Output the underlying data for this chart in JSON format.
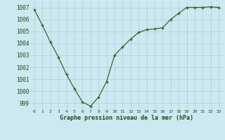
{
  "x": [
    0,
    1,
    2,
    3,
    4,
    5,
    6,
    7,
    8,
    9,
    10,
    11,
    12,
    13,
    14,
    15,
    16,
    17,
    18,
    19,
    20,
    21,
    22,
    23
  ],
  "y": [
    1006.8,
    1005.5,
    1004.1,
    1002.85,
    1001.4,
    1000.2,
    999.1,
    998.75,
    999.5,
    1000.8,
    1003.0,
    1003.7,
    1004.35,
    1004.9,
    1005.15,
    1005.2,
    1005.3,
    1006.0,
    1006.5,
    1007.0,
    1007.0,
    1007.0,
    1007.05,
    1007.0
  ],
  "line_color": "#2d6a2d",
  "marker": "+",
  "marker_color": "#2d6a2d",
  "bg_color": "#cce8f0",
  "grid_color": "#b0cdd8",
  "xlabel": "Graphe pression niveau de la mer (hPa)",
  "xlabel_color": "#1a4d1a",
  "tick_color": "#1a4d1a",
  "ylim": [
    998.5,
    1007.5
  ],
  "yticks": [
    999,
    1000,
    1001,
    1002,
    1003,
    1004,
    1005,
    1006,
    1007
  ],
  "xticks": [
    0,
    1,
    2,
    3,
    4,
    5,
    6,
    7,
    8,
    9,
    10,
    11,
    12,
    13,
    14,
    15,
    16,
    17,
    18,
    19,
    20,
    21,
    22,
    23
  ],
  "xlim": [
    -0.5,
    23.5
  ]
}
